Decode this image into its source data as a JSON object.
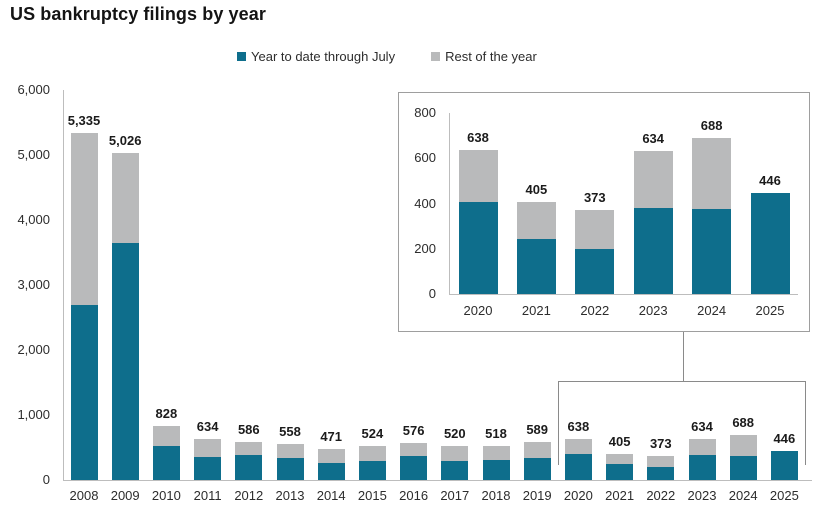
{
  "title": "US bankruptcy filings by year",
  "legend": [
    {
      "label": "Year to date through July",
      "color": "#0e6e8c"
    },
    {
      "label": "Rest of the year",
      "color": "#b9babb"
    }
  ],
  "colors": {
    "ytd": "#0e6e8c",
    "rest": "#b9babb",
    "axis": "#bdbdbd",
    "tick_text": "#2d2d2d",
    "value_text": "#1b1b1b",
    "callout": "#8a8a8a"
  },
  "chart_data": [
    {
      "name": "main",
      "type": "bar",
      "stacked": true,
      "title": "US bankruptcy filings by year",
      "categories": [
        "2008",
        "2009",
        "2010",
        "2011",
        "2012",
        "2013",
        "2014",
        "2015",
        "2016",
        "2017",
        "2018",
        "2019",
        "2020",
        "2021",
        "2022",
        "2023",
        "2024",
        "2025"
      ],
      "series": [
        {
          "name": "Year to date through July",
          "values": [
            2690,
            3650,
            530,
            360,
            380,
            335,
            265,
            290,
            370,
            295,
            315,
            345,
            405,
            245,
            198,
            380,
            375,
            446
          ]
        },
        {
          "name": "Rest of the year",
          "values": [
            2645,
            1376,
            298,
            274,
            206,
            223,
            206,
            234,
            206,
            225,
            203,
            244,
            233,
            160,
            175,
            254,
            313,
            0
          ]
        }
      ],
      "totals": [
        5335,
        5026,
        828,
        634,
        586,
        558,
        471,
        524,
        576,
        520,
        518,
        589,
        638,
        405,
        373,
        634,
        688,
        446
      ],
      "data_labels": [
        "5,335",
        "5,026",
        "828",
        "634",
        "586",
        "558",
        "471",
        "524",
        "576",
        "520",
        "518",
        "589",
        "638",
        "405",
        "373",
        "634",
        "688",
        "446"
      ],
      "ylim": [
        0,
        6000
      ],
      "ytick_labels": [
        "6,000",
        "5,000",
        "4,000",
        "3,000",
        "2,000",
        "1,000",
        "0"
      ],
      "grid": false,
      "legend_position": "top"
    },
    {
      "name": "inset-2020-2025",
      "type": "bar",
      "stacked": true,
      "title": "",
      "categories": [
        "2020",
        "2021",
        "2022",
        "2023",
        "2024",
        "2025"
      ],
      "series": [
        {
          "name": "Year to date through July",
          "values": [
            405,
            245,
            198,
            380,
            375,
            446
          ]
        },
        {
          "name": "Rest of the year",
          "values": [
            233,
            160,
            175,
            254,
            313,
            0
          ]
        }
      ],
      "totals": [
        638,
        405,
        373,
        634,
        688,
        446
      ],
      "data_labels": [
        "638",
        "405",
        "373",
        "634",
        "688",
        "446"
      ],
      "ylim": [
        0,
        800
      ],
      "ytick_labels": [
        "800",
        "600",
        "400",
        "200",
        "0"
      ],
      "grid": false,
      "legend_position": "none"
    }
  ]
}
